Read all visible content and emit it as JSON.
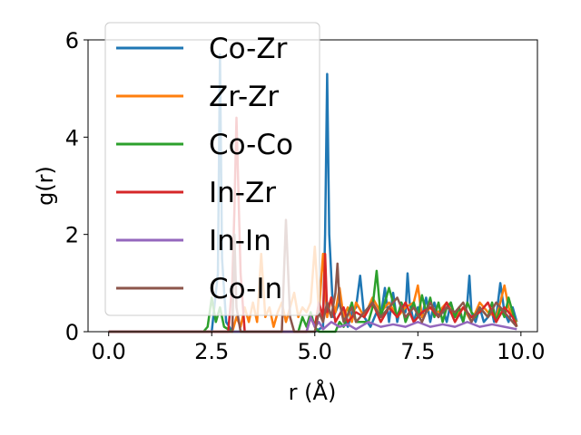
{
  "chart_data": {
    "type": "line",
    "title": "",
    "xlabel": "r (Å)",
    "ylabel": "g(r)",
    "xlim": [
      -0.5,
      10.4
    ],
    "ylim": [
      0,
      6
    ],
    "xticks": [
      "0.0",
      "2.5",
      "5.0",
      "7.5",
      "10.0"
    ],
    "xtick_values": [
      0,
      2.5,
      5,
      7.5,
      10
    ],
    "yticks": [
      "0",
      "2",
      "4",
      "6"
    ],
    "ytick_values": [
      0,
      2,
      4,
      6
    ],
    "legend_position": "upper-left",
    "grid": false,
    "series": [
      {
        "name": "Co-Zr",
        "color": "#1f77b4",
        "x": [
          0,
          2.5,
          2.65,
          2.7,
          2.75,
          2.85,
          3.0,
          5.0,
          5.2,
          5.25,
          5.3,
          5.35,
          5.45,
          5.6,
          5.8,
          5.9,
          6.0,
          6.1,
          6.2,
          6.35,
          6.5,
          6.6,
          6.7,
          6.8,
          6.9,
          7.0,
          7.1,
          7.2,
          7.25,
          7.3,
          7.4,
          7.5,
          7.6,
          7.7,
          7.8,
          7.9,
          8.0,
          8.1,
          8.2,
          8.3,
          8.4,
          8.5,
          8.6,
          8.7,
          8.75,
          8.8,
          8.9,
          9.0,
          9.1,
          9.2,
          9.3,
          9.35,
          9.4,
          9.5,
          9.6,
          9.7,
          9.8,
          9.9
        ],
        "y": [
          0,
          0,
          1.2,
          5.7,
          1.5,
          0.2,
          0,
          0,
          0.1,
          2.0,
          5.3,
          2.0,
          0.3,
          0.6,
          0.1,
          0.4,
          0.5,
          1.15,
          0.3,
          0.1,
          0.4,
          0.3,
          0.9,
          0.2,
          0.8,
          0.2,
          0.6,
          0.4,
          1.2,
          0.6,
          0.2,
          0.5,
          0.3,
          0.7,
          0.2,
          0.6,
          0.3,
          0.5,
          0.2,
          0.6,
          0.3,
          0.4,
          0.2,
          0.6,
          1.15,
          0.4,
          0.2,
          0.5,
          0.2,
          0.3,
          0.4,
          0.2,
          0.3,
          1.0,
          0.4,
          0.2,
          0.5,
          0.2
        ]
      },
      {
        "name": "Zr-Zr",
        "color": "#ff7f0e",
        "x": [
          0,
          3.0,
          3.1,
          3.2,
          3.3,
          3.4,
          3.5,
          3.6,
          3.7,
          3.8,
          3.9,
          4.0,
          4.1,
          4.2,
          4.3,
          4.4,
          4.5,
          4.6,
          4.7,
          4.8,
          4.9,
          5.0,
          5.1,
          5.2,
          5.3,
          5.4,
          5.5,
          5.6,
          5.7,
          5.8,
          5.9,
          6.0,
          6.2,
          6.4,
          6.6,
          6.8,
          7.0,
          7.2,
          7.4,
          7.5,
          7.6,
          7.8,
          8.0,
          8.2,
          8.4,
          8.6,
          8.8,
          9.0,
          9.2,
          9.4,
          9.5,
          9.6,
          9.7,
          9.8,
          9.9
        ],
        "y": [
          0,
          0,
          0.3,
          0.1,
          0.5,
          0.2,
          0.6,
          0.2,
          1.6,
          0.3,
          0.5,
          0.1,
          0.4,
          0.6,
          0.2,
          0.5,
          0.8,
          0.3,
          0.5,
          0.4,
          0.6,
          1.75,
          0.4,
          1.6,
          0.3,
          0.7,
          0.4,
          0.9,
          0.3,
          0.5,
          0.2,
          0.6,
          0.3,
          0.7,
          0.4,
          0.6,
          0.3,
          0.5,
          0.6,
          0.95,
          0.3,
          0.5,
          0.4,
          0.6,
          0.3,
          0.5,
          0.2,
          0.6,
          0.4,
          0.3,
          0.6,
          0.95,
          0.5,
          0.3,
          0.2
        ]
      },
      {
        "name": "Co-Co",
        "color": "#2ca02c",
        "x": [
          0,
          2.3,
          2.4,
          2.5,
          2.6,
          2.7,
          2.8,
          3.0,
          4.6,
          4.7,
          4.8,
          4.9,
          5.0,
          5.1,
          5.5,
          5.6,
          5.7,
          5.9,
          6.0,
          6.3,
          6.4,
          6.5,
          6.6,
          6.8,
          7.0,
          7.1,
          7.2,
          7.3,
          7.4,
          7.5,
          7.6,
          7.7,
          7.8,
          7.9,
          8.0,
          8.1,
          8.2,
          8.3,
          8.4,
          8.5,
          8.6,
          8.7,
          8.8,
          8.9,
          9.0,
          9.1,
          9.2,
          9.3,
          9.4,
          9.5,
          9.6,
          9.7,
          9.8,
          9.9
        ],
        "y": [
          0,
          0,
          0.1,
          0.7,
          0.2,
          0.5,
          0.1,
          0,
          0,
          0.3,
          0.1,
          0.4,
          0.1,
          0,
          0,
          0.2,
          0.1,
          0.6,
          0.2,
          0.2,
          0.5,
          1.25,
          0.3,
          0.9,
          0.3,
          0.6,
          0.2,
          0.4,
          0.6,
          0.3,
          0.75,
          0.4,
          0.7,
          0.3,
          0.6,
          0.2,
          0.5,
          0.6,
          0.3,
          0.5,
          0.2,
          0.6,
          0.4,
          0.3,
          0.5,
          0.4,
          0.3,
          0.6,
          0.2,
          0.5,
          0.3,
          0.7,
          0.4,
          0.1
        ]
      },
      {
        "name": "In-Zr",
        "color": "#d62728",
        "x": [
          0,
          2.9,
          3.0,
          3.05,
          3.1,
          3.2,
          3.3,
          4.8,
          4.9,
          5.0,
          5.1,
          5.2,
          5.25,
          5.3,
          5.4,
          5.5,
          5.7,
          5.8,
          6.0,
          6.2,
          6.4,
          6.6,
          6.8,
          7.0,
          7.2,
          7.4,
          7.6,
          7.8,
          8.0,
          8.2,
          8.4,
          8.6,
          8.8,
          9.0,
          9.2,
          9.4,
          9.6,
          9.8,
          9.9
        ],
        "y": [
          0,
          0,
          1.0,
          2.5,
          4.4,
          1.2,
          0,
          0,
          0.3,
          0.1,
          0.6,
          0.3,
          1.6,
          0.4,
          0.7,
          0.2,
          0.5,
          0.2,
          0.4,
          0.3,
          0.6,
          0.2,
          0.5,
          0.3,
          0.6,
          0.2,
          0.4,
          0.5,
          0.3,
          0.6,
          0.2,
          0.5,
          0.3,
          0.4,
          0.6,
          0.2,
          0.5,
          0.3,
          0.1
        ]
      },
      {
        "name": "In-In",
        "color": "#9467bd",
        "x": [
          0,
          4.8,
          4.9,
          5.0,
          5.1,
          5.2,
          5.4,
          5.6,
          5.8,
          6.0,
          6.3,
          6.6,
          6.9,
          7.2,
          7.5,
          7.8,
          8.1,
          8.4,
          8.7,
          9.0,
          9.3,
          9.6,
          9.9
        ],
        "y": [
          0,
          0,
          0.3,
          0.1,
          0.2,
          0.05,
          0.2,
          0.1,
          0.15,
          0.05,
          0.2,
          0.1,
          0.15,
          0.1,
          0.2,
          0.1,
          0.15,
          0.1,
          0.2,
          0.1,
          0.15,
          0.1,
          0.05
        ]
      },
      {
        "name": "Co-In",
        "color": "#8c564b",
        "x": [
          0,
          3.0,
          3.05,
          3.1,
          3.2,
          4.2,
          4.3,
          4.4,
          4.5,
          5.0,
          5.1,
          5.2,
          5.3,
          5.4,
          5.5,
          5.55,
          5.6,
          5.7,
          5.9,
          6.0,
          6.2,
          6.4,
          6.6,
          6.8,
          7.0,
          7.2,
          7.4,
          7.6,
          7.8,
          8.0,
          8.2,
          8.4,
          8.6,
          8.8,
          9.0,
          9.2,
          9.4,
          9.6,
          9.8,
          9.9
        ],
        "y": [
          0,
          0,
          2.0,
          0.5,
          0,
          0,
          2.3,
          0.3,
          0,
          0,
          0.4,
          0.2,
          0.6,
          0.3,
          0.8,
          1.4,
          0.6,
          0.2,
          0.5,
          0.2,
          0.4,
          0.6,
          0.3,
          0.5,
          0.7,
          0.3,
          0.5,
          0.2,
          0.6,
          0.3,
          0.5,
          0.4,
          0.6,
          0.2,
          0.5,
          0.3,
          0.6,
          0.4,
          0.2,
          0.1
        ]
      }
    ]
  }
}
